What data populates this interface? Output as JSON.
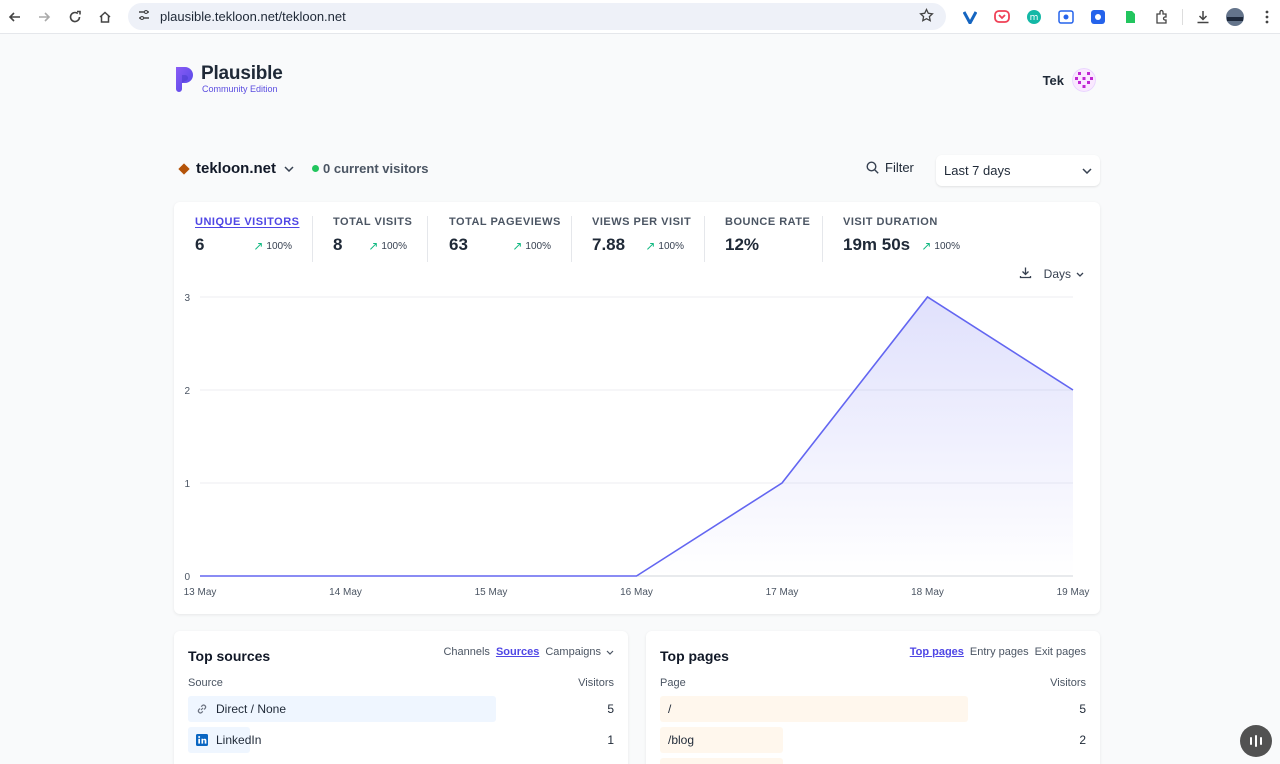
{
  "browser": {
    "url": "plausible.tekloon.net/tekloon.net"
  },
  "header": {
    "brand": "Plausible",
    "edition": "Community Edition",
    "user_name": "Tek"
  },
  "site_bar": {
    "site": "tekloon.net",
    "current_visitors": "0 current visitors",
    "filter_label": "Filter",
    "period": "Last 7 days"
  },
  "metrics": [
    {
      "label": "UNIQUE VISITORS",
      "value": "6",
      "change": "100%",
      "active": true
    },
    {
      "label": "TOTAL VISITS",
      "value": "8",
      "change": "100%"
    },
    {
      "label": "TOTAL PAGEVIEWS",
      "value": "63",
      "change": "100%"
    },
    {
      "label": "VIEWS PER VISIT",
      "value": "7.88",
      "change": "100%"
    },
    {
      "label": "BOUNCE RATE",
      "value": "12%"
    },
    {
      "label": "VISIT DURATION",
      "value": "19m 50s",
      "change": "100%"
    }
  ],
  "chart_controls": {
    "interval": "Days"
  },
  "chart_data": {
    "type": "area",
    "categories": [
      "13 May",
      "14 May",
      "15 May",
      "16 May",
      "17 May",
      "18 May",
      "19 May"
    ],
    "values": [
      0,
      0,
      0,
      0,
      1,
      3,
      2
    ],
    "yticks": [
      "0",
      "1",
      "2",
      "3"
    ],
    "ylim": [
      0,
      3
    ],
    "grid": true,
    "color": "#6366f1"
  },
  "top_sources": {
    "title": "Top sources",
    "tabs": [
      "Channels",
      "Sources",
      "Campaigns"
    ],
    "active_tab": "Sources",
    "col_left": "Source",
    "col_right": "Visitors",
    "rows": [
      {
        "label": "Direct / None",
        "count": "5",
        "share": 1.0,
        "icon": "link-icon"
      },
      {
        "label": "LinkedIn",
        "count": "1",
        "share": 0.2,
        "icon": "linkedin-icon"
      }
    ]
  },
  "top_pages": {
    "title": "Top pages",
    "tabs": [
      "Top pages",
      "Entry pages",
      "Exit pages"
    ],
    "active_tab": "Top pages",
    "col_left": "Page",
    "col_right": "Visitors",
    "rows": [
      {
        "label": "/",
        "count": "5",
        "share": 1.0
      },
      {
        "label": "/blog",
        "count": "2",
        "share": 0.4
      }
    ]
  }
}
